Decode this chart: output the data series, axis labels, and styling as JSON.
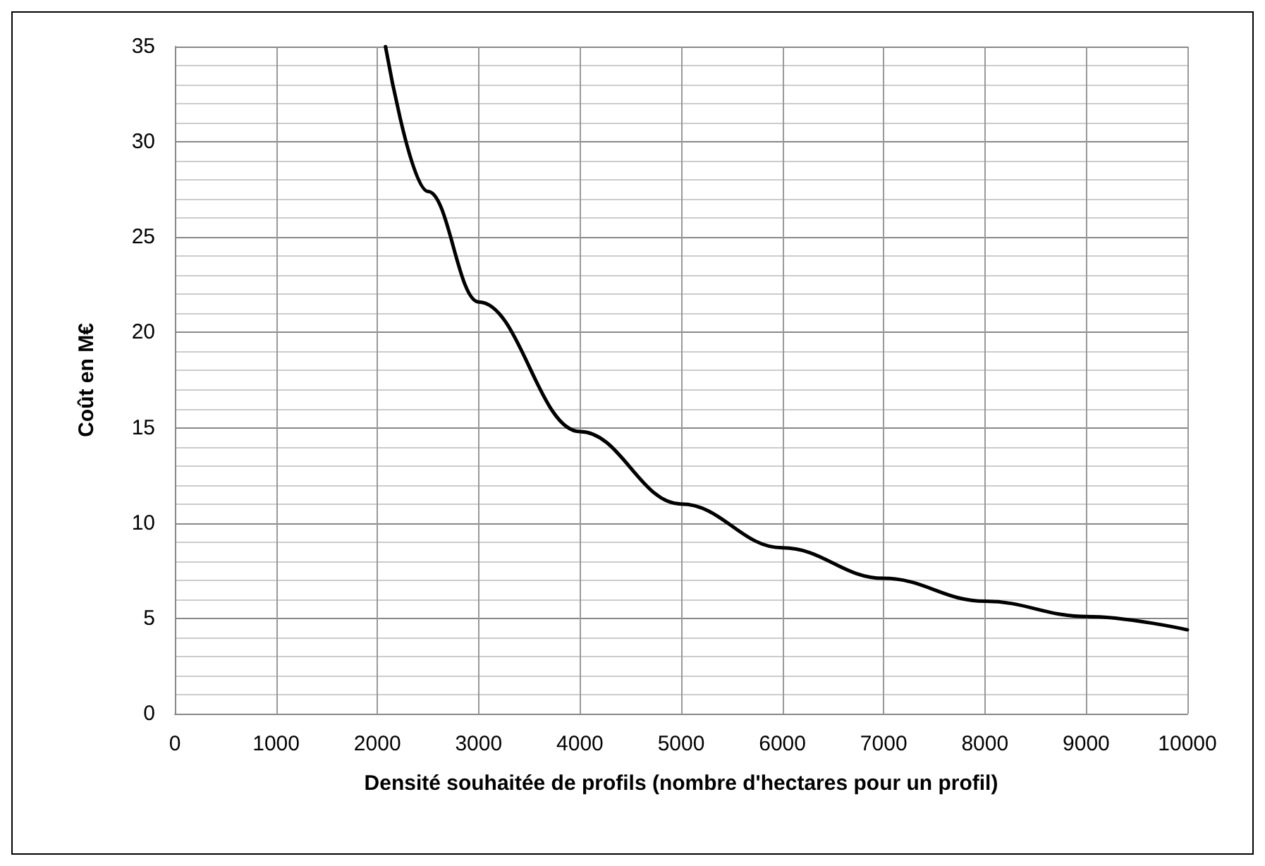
{
  "chart_data": {
    "type": "line",
    "xlabel": "Densité souhaitée de profils (nombre d'hectares pour un profil)",
    "ylabel": "Coût en M€",
    "x": [
      2080,
      2500,
      3000,
      4000,
      5000,
      6000,
      7000,
      8000,
      9000,
      10000
    ],
    "series": [
      {
        "color": "#000000",
        "values": [
          35,
          27.4,
          21.6,
          14.8,
          11.0,
          8.7,
          7.1,
          5.9,
          5.1,
          4.4
        ]
      }
    ],
    "xlim": [
      0,
      10000
    ],
    "xticks": [
      0,
      1000,
      2000,
      3000,
      4000,
      5000,
      6000,
      7000,
      8000,
      9000,
      10000
    ],
    "ylim": [
      0,
      35
    ],
    "yticks": [
      0,
      5,
      10,
      15,
      20,
      25,
      30,
      35
    ],
    "grid": true
  }
}
